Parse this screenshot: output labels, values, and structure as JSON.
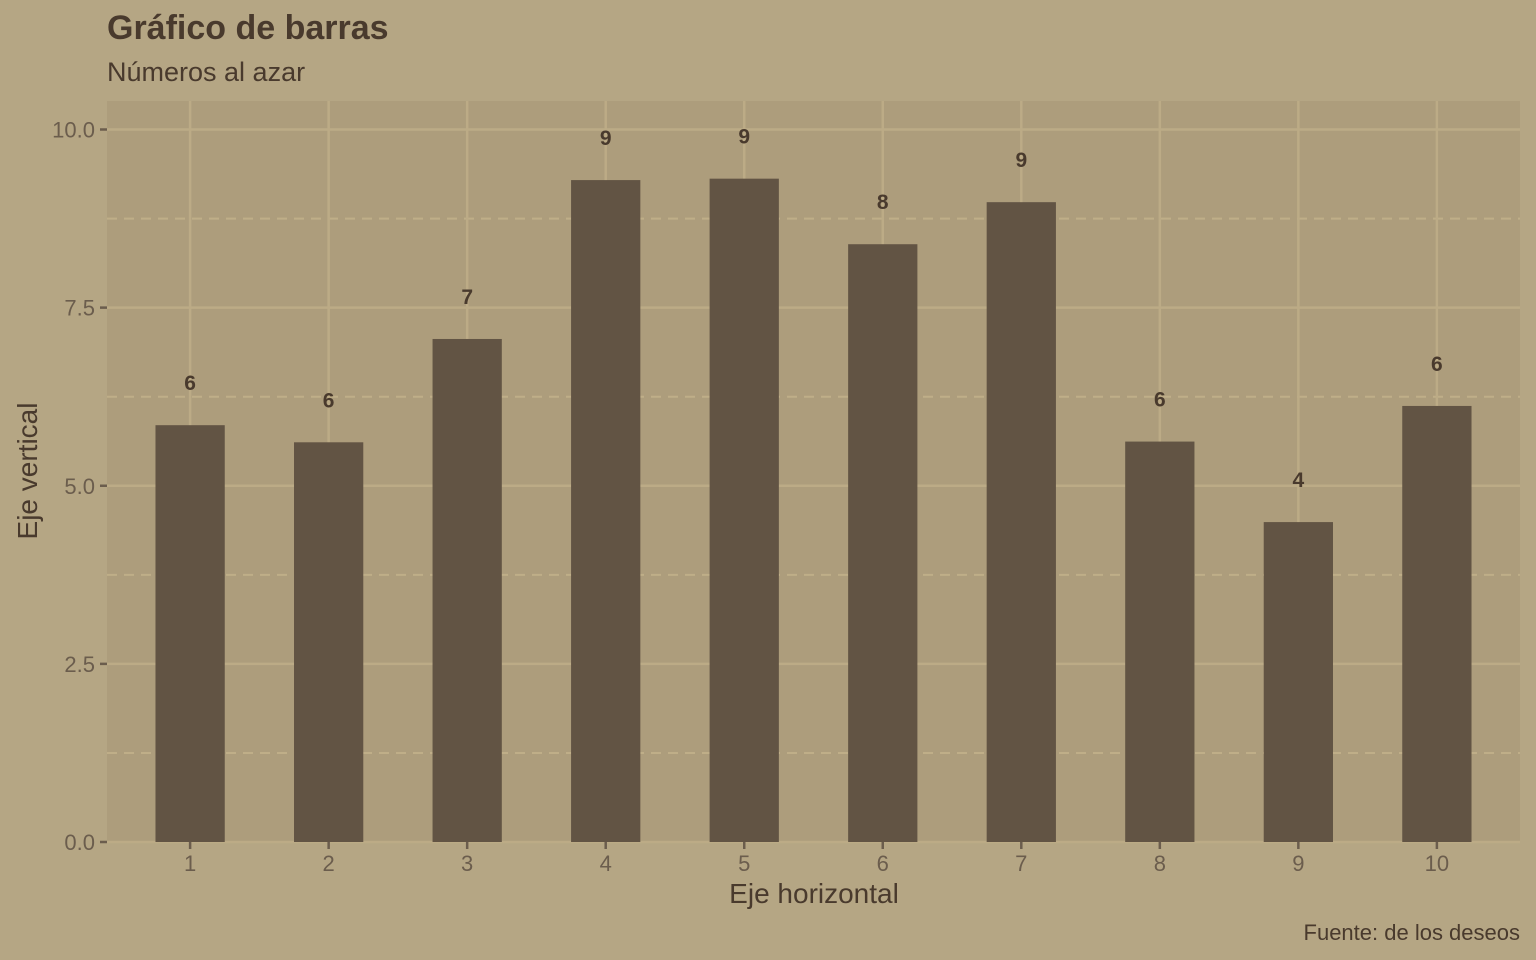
{
  "chart_data": {
    "type": "bar",
    "title": "Gráfico de barras",
    "subtitle": "Números al azar",
    "xlabel": "Eje horizontal",
    "ylabel": "Eje vertical",
    "caption": "Fuente: de los deseos",
    "categories": [
      "1",
      "2",
      "3",
      "4",
      "5",
      "6",
      "7",
      "8",
      "9",
      "10"
    ],
    "values": [
      5.85,
      5.61,
      7.06,
      9.29,
      9.31,
      8.39,
      8.98,
      5.62,
      4.49,
      6.12
    ],
    "labels": [
      "6",
      "6",
      "7",
      "9",
      "9",
      "8",
      "9",
      "6",
      "4",
      "6"
    ],
    "yticks": [
      "0.0",
      "2.5",
      "5.0",
      "7.5",
      "10.0"
    ],
    "ytick_values": [
      0,
      2.5,
      5,
      7.5,
      10
    ],
    "ylim": [
      0,
      10.4
    ],
    "grid": true,
    "legend": "none",
    "colors": {
      "background": "#b5a684",
      "panel": "#ad9d7c",
      "bar": "#625444",
      "grid_major": "#bcab86",
      "grid_minor": "#bfae88",
      "text": "#493a2d",
      "tick": "#6b5d4d"
    }
  }
}
